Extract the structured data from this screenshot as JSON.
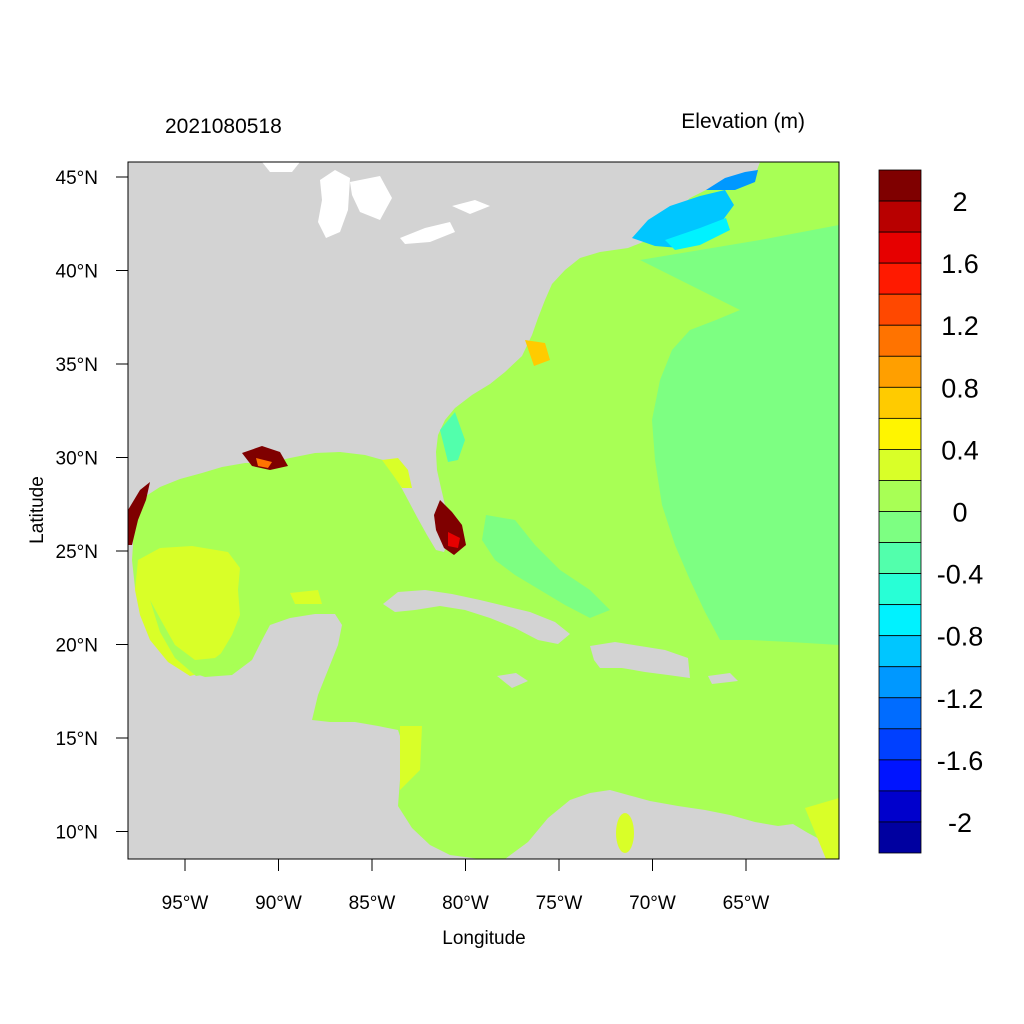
{
  "header": {
    "left_title": "2021080518",
    "right_title": "Elevation (m)"
  },
  "axes": {
    "xlabel": "Longitude",
    "ylabel": "Latitude",
    "x_ticks": [
      "95°W",
      "90°W",
      "85°W",
      "80°W",
      "75°W",
      "70°W",
      "65°W"
    ],
    "y_ticks": [
      "45°N",
      "40°N",
      "35°N",
      "30°N",
      "25°N",
      "20°N",
      "15°N",
      "10°N"
    ]
  },
  "colorbar": {
    "labels": [
      "2",
      "1.6",
      "1.2",
      "0.8",
      "0.4",
      "0",
      "-0.4",
      "-0.8",
      "-1.2",
      "-1.6",
      "-2"
    ],
    "colors": [
      "#7f0000",
      "#b80000",
      "#e60000",
      "#ff1a00",
      "#ff4800",
      "#ff7300",
      "#ff9f00",
      "#ffcb00",
      "#fff500",
      "#d9ff28",
      "#a8ff55",
      "#7dff82",
      "#52ffac",
      "#28ffd6",
      "#00f2ff",
      "#00c6ff",
      "#0098ff",
      "#006cff",
      "#0040ff",
      "#0014ff",
      "#0000cc",
      "#0000a0"
    ]
  },
  "map_colors": {
    "land": "#d3d3d3",
    "water_bodies": "#ffffff",
    "ocean_base": "#a8ff55",
    "ocean_east": "#7dff82",
    "gulf_yellow": "#d9ff28",
    "high_surge": "#7f0000",
    "negative_anomaly": "#00c6ff"
  }
}
